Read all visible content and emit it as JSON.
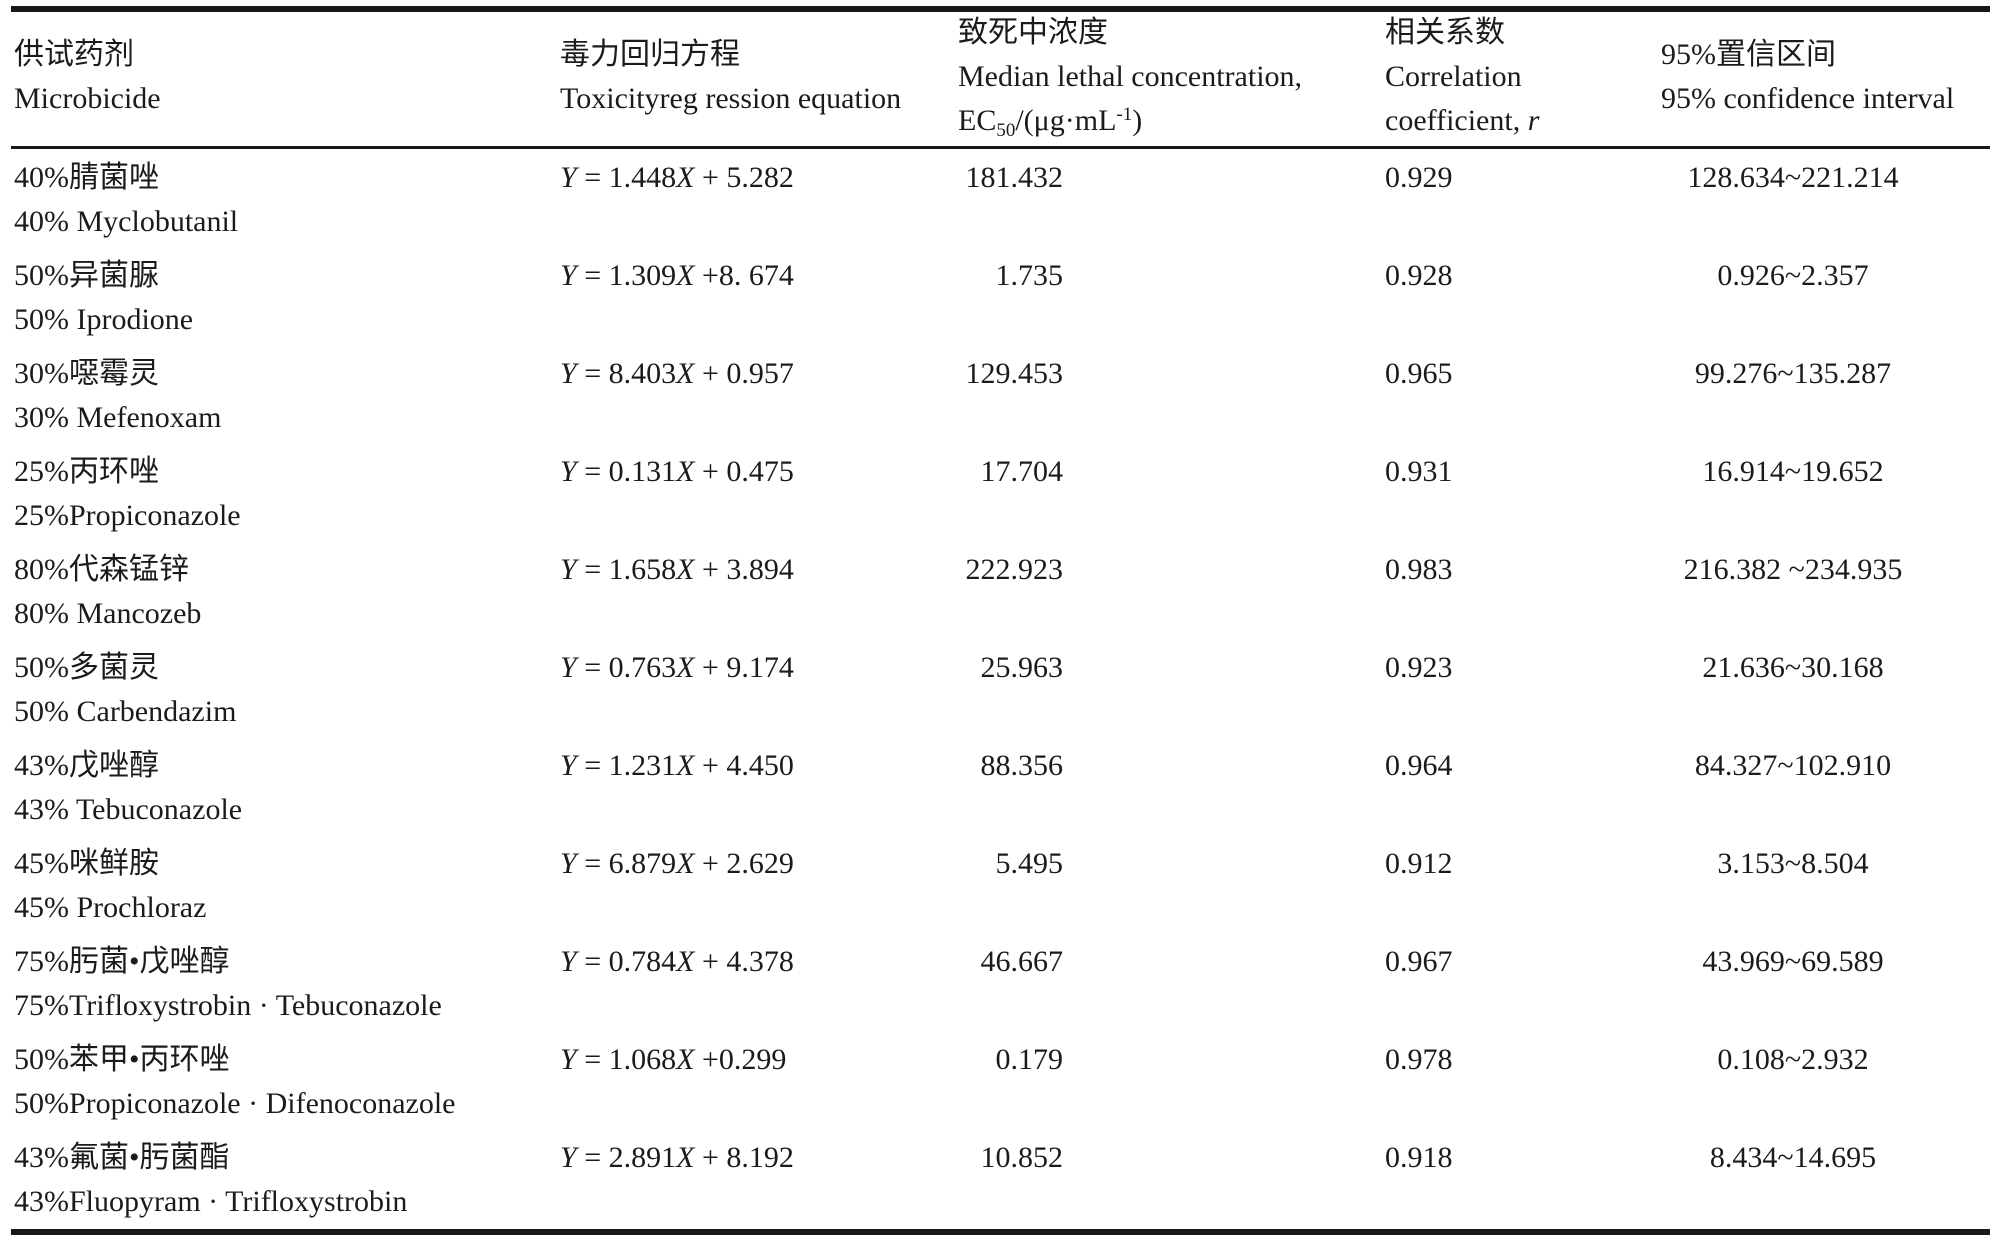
{
  "table": {
    "header": {
      "col1": {
        "cn": "供试药剂",
        "en": "Microbicide"
      },
      "col2": {
        "cn": "毒力回归方程",
        "en": "Toxicityreg ression equation"
      },
      "col3": {
        "cn": "致死中浓度",
        "en_line1": "Median lethal concentration,",
        "ec_pre": "EC",
        "ec_sub": "50",
        "ec_mid": "/(μg·mL",
        "ec_sup": "-1",
        "ec_post": ")"
      },
      "col4": {
        "cn": "相关系数",
        "en_line1": "Correlation",
        "en_line2_pre": "coefficient, ",
        "en_line2_it": "r"
      },
      "col5": {
        "cn": "95%置信区间",
        "en": "95% confidence interval"
      }
    },
    "equation_symbols": {
      "y": "Y",
      "equals": " = ",
      "x": "X"
    },
    "rows": [
      {
        "name_cn": "40%腈菌唑",
        "name_en": "40% Myclobutanil",
        "eq_a": "1.448",
        "eq_b": "+ 5.282",
        "ec50": "181.432",
        "r": "0.929",
        "ci": "128.634~221.214"
      },
      {
        "name_cn": "50%异菌脲",
        "name_en": "50% Iprodione",
        "eq_a": "1.309",
        "eq_b": "+8. 674",
        "ec50": "1.735",
        "r": "0.928",
        "ci": "0.926~2.357"
      },
      {
        "name_cn": "30%噁霉灵",
        "name_en": "30% Mefenoxam",
        "eq_a": "8.403",
        "eq_b": "+ 0.957",
        "ec50": "129.453",
        "r": "0.965",
        "ci": "99.276~135.287"
      },
      {
        "name_cn": "25%丙环唑",
        "name_en": "25%Propiconazole",
        "eq_a": "0.131",
        "eq_b": "+ 0.475",
        "ec50": "17.704",
        "r": "0.931",
        "ci": "16.914~19.652"
      },
      {
        "name_cn": "80%代森锰锌",
        "name_en": "80% Mancozeb",
        "eq_a": "1.658",
        "eq_b": "+ 3.894",
        "ec50": "222.923",
        "r": "0.983",
        "ci": "216.382 ~234.935"
      },
      {
        "name_cn": "50%多菌灵",
        "name_en": "50% Carbendazim",
        "eq_a": "0.763",
        "eq_b": "+ 9.174",
        "ec50": "25.963",
        "r": "0.923",
        "ci": "21.636~30.168"
      },
      {
        "name_cn": "43%戊唑醇",
        "name_en": "43% Tebuconazole",
        "eq_a": "1.231",
        "eq_b": "+ 4.450",
        "ec50": "88.356",
        "r": "0.964",
        "ci": "84.327~102.910"
      },
      {
        "name_cn": "45%咪鲜胺",
        "name_en": "45% Prochloraz",
        "eq_a": "6.879",
        "eq_b": "+ 2.629",
        "ec50": "5.495",
        "r": "0.912",
        "ci": "3.153~8.504"
      },
      {
        "name_cn": "75%肟菌•戊唑醇",
        "name_en": "75%Trifloxystrobin · Tebuconazole",
        "eq_a": "0.784",
        "eq_b": "+ 4.378",
        "ec50": "46.667",
        "r": "0.967",
        "ci": "43.969~69.589"
      },
      {
        "name_cn": "50%苯甲•丙环唑",
        "name_en": "50%Propiconazole · Difenoconazole",
        "eq_a": "1.068",
        "eq_b": "+0.299",
        "ec50": "0.179",
        "r": "0.978",
        "ci": "0.108~2.932"
      },
      {
        "name_cn": "43%氟菌•肟菌酯",
        "name_en": "43%Fluopyram · Trifloxystrobin",
        "eq_a": "2.891",
        "eq_b": "+ 8.192",
        "ec50": "10.852",
        "r": "0.918",
        "ci": "8.434~14.695"
      }
    ]
  }
}
